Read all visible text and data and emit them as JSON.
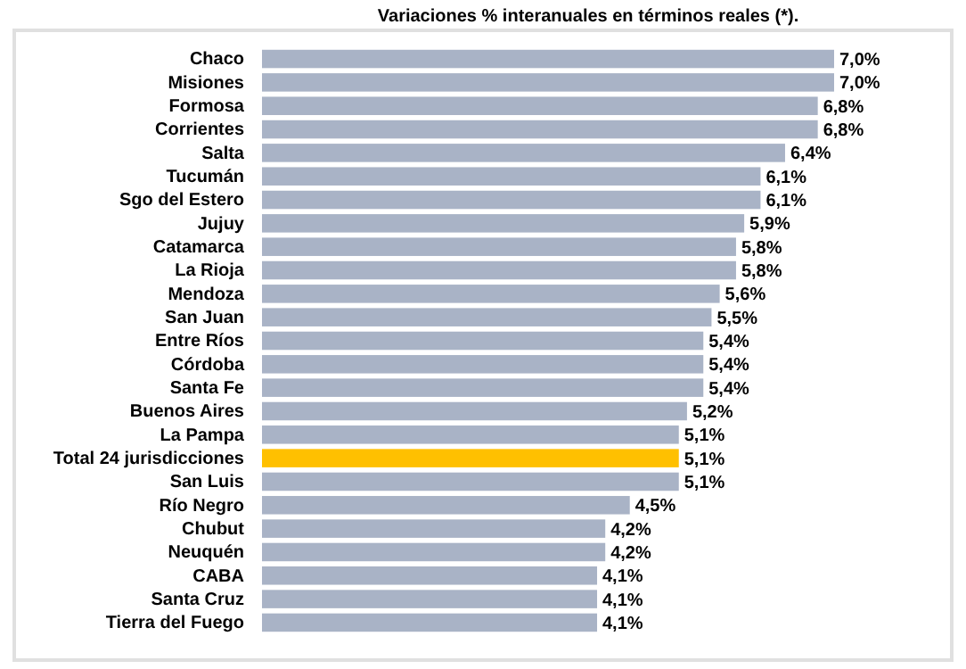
{
  "chart_data": {
    "type": "bar",
    "orientation": "horizontal",
    "title": "Variaciones % interanuales en términos reales (*).",
    "categories": [
      "Chaco",
      "Misiones",
      "Formosa",
      "Corrientes",
      "Salta",
      "Tucumán",
      "Sgo del Estero",
      "Jujuy",
      "Catamarca",
      "La Rioja",
      "Mendoza",
      "San Juan",
      "Entre Ríos",
      "Córdoba",
      "Santa Fe",
      "Buenos Aires",
      "La Pampa",
      "Total 24 jurisdicciones",
      "San Luis",
      "Río Negro",
      "Chubut",
      "Neuquén",
      "CABA",
      "Santa Cruz",
      "Tierra del Fuego"
    ],
    "values": [
      7.0,
      7.0,
      6.8,
      6.8,
      6.4,
      6.1,
      6.1,
      5.9,
      5.8,
      5.8,
      5.6,
      5.5,
      5.4,
      5.4,
      5.4,
      5.2,
      5.1,
      5.1,
      5.1,
      4.5,
      4.2,
      4.2,
      4.1,
      4.1,
      4.1
    ],
    "value_labels": [
      "7,0%",
      "7,0%",
      "6,8%",
      "6,8%",
      "6,4%",
      "6,1%",
      "6,1%",
      "5,9%",
      "5,8%",
      "5,8%",
      "5,6%",
      "5,5%",
      "5,4%",
      "5,4%",
      "5,4%",
      "5,2%",
      "5,1%",
      "5,1%",
      "5,1%",
      "4,5%",
      "4,2%",
      "4,2%",
      "4,1%",
      "4,1%",
      "4,1%"
    ],
    "colors": [
      "#a9b3c6",
      "#a9b3c6",
      "#a9b3c6",
      "#a9b3c6",
      "#a9b3c6",
      "#a9b3c6",
      "#a9b3c6",
      "#a9b3c6",
      "#a9b3c6",
      "#a9b3c6",
      "#a9b3c6",
      "#a9b3c6",
      "#a9b3c6",
      "#a9b3c6",
      "#a9b3c6",
      "#a9b3c6",
      "#a9b3c6",
      "#ffc000",
      "#a9b3c6",
      "#a9b3c6",
      "#a9b3c6",
      "#a9b3c6",
      "#a9b3c6",
      "#a9b3c6",
      "#a9b3c6"
    ]
  }
}
